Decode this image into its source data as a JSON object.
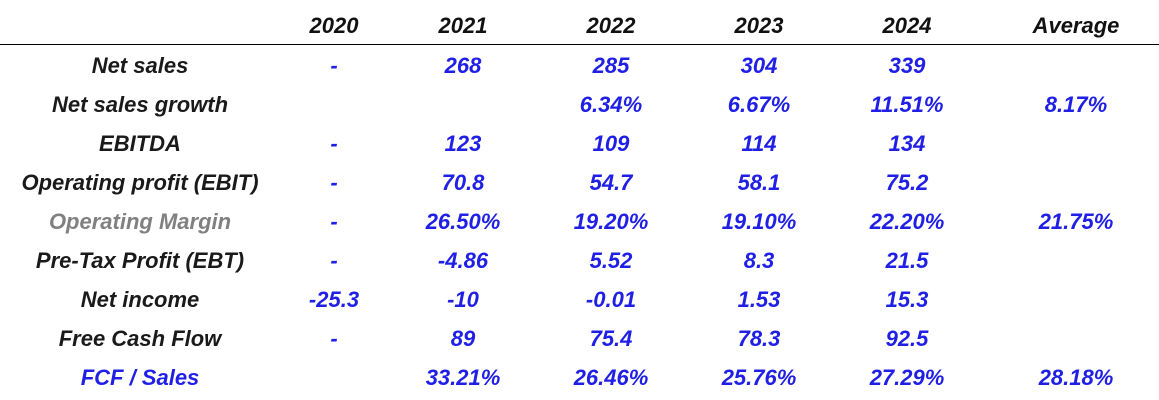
{
  "colors": {
    "label_default": "#1a1a1a",
    "label_muted": "#808080",
    "label_blue": "#1f1fe6",
    "value": "#1f1fe6",
    "header": "#111111"
  },
  "header": {
    "columns": [
      "2020",
      "2021",
      "2022",
      "2023",
      "2024",
      "Average"
    ]
  },
  "rows": [
    {
      "label": "Net sales",
      "label_style": "default",
      "values": [
        "-",
        "268",
        "285",
        "304",
        "339",
        ""
      ]
    },
    {
      "label": "Net sales growth",
      "label_style": "default",
      "values": [
        "",
        "",
        "6.34%",
        "6.67%",
        "11.51%",
        "8.17%"
      ]
    },
    {
      "label": "EBITDA",
      "label_style": "default",
      "values": [
        "-",
        "123",
        "109",
        "114",
        "134",
        ""
      ]
    },
    {
      "label": "Operating profit (EBIT)",
      "label_style": "default",
      "values": [
        "-",
        "70.8",
        "54.7",
        "58.1",
        "75.2",
        ""
      ]
    },
    {
      "label": "Operating Margin",
      "label_style": "muted",
      "values": [
        "-",
        "26.50%",
        "19.20%",
        "19.10%",
        "22.20%",
        "21.75%"
      ]
    },
    {
      "label": "Pre-Tax Profit (EBT)",
      "label_style": "default",
      "values": [
        "-",
        "-4.86",
        "5.52",
        "8.3",
        "21.5",
        ""
      ]
    },
    {
      "label": "Net income",
      "label_style": "default",
      "values": [
        "-25.3",
        "-10",
        "-0.01",
        "1.53",
        "15.3",
        ""
      ]
    },
    {
      "label": "Free Cash Flow",
      "label_style": "default",
      "values": [
        "-",
        "89",
        "75.4",
        "78.3",
        "92.5",
        ""
      ]
    },
    {
      "label": "FCF / Sales",
      "label_style": "blue",
      "values": [
        "",
        "33.21%",
        "26.46%",
        "25.76%",
        "27.29%",
        "28.18%"
      ]
    }
  ]
}
